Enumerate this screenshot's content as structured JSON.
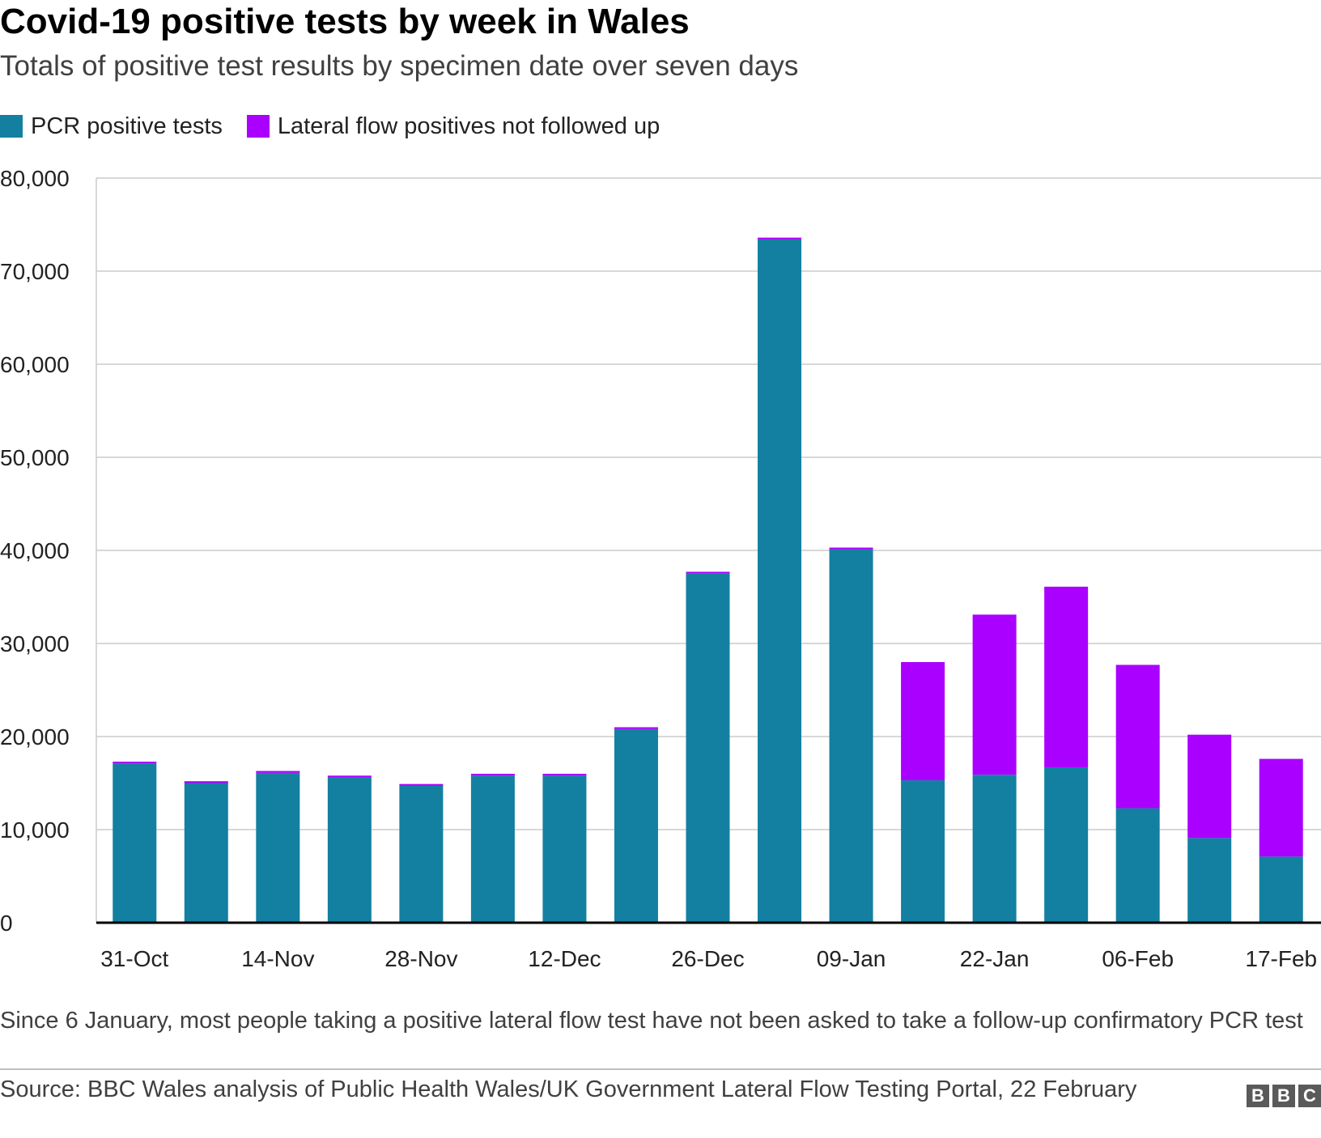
{
  "chart_data": {
    "type": "bar",
    "stacked": true,
    "title": "Covid-19 positive tests by week in Wales",
    "subtitle": "Totals of positive test results by specimen date over seven days",
    "categories": [
      "31-Oct",
      "07-Nov",
      "14-Nov",
      "21-Nov",
      "28-Nov",
      "05-Dec",
      "12-Dec",
      "19-Dec",
      "26-Dec",
      "02-Jan",
      "09-Jan",
      "16-Jan",
      "22-Jan",
      "30-Jan",
      "06-Feb",
      "12-Feb",
      "17-Feb"
    ],
    "x_tick_labels": [
      "31-Oct",
      "14-Nov",
      "28-Nov",
      "12-Dec",
      "26-Dec",
      "09-Jan",
      "22-Jan",
      "06-Feb",
      "17-Feb"
    ],
    "series": [
      {
        "name": "PCR positive tests",
        "color": "#1380a1",
        "values": [
          17100,
          15000,
          16100,
          15600,
          14700,
          15800,
          15800,
          20800,
          37500,
          73400,
          40100,
          15300,
          15900,
          16700,
          12300,
          9100,
          7100
        ]
      },
      {
        "name": "Lateral flow positives not followed up",
        "color": "#aa00ff",
        "values": [
          200,
          200,
          200,
          200,
          200,
          200,
          200,
          200,
          200,
          200,
          200,
          12700,
          17200,
          19400,
          15400,
          11100,
          10500
        ]
      }
    ],
    "xlabel": "",
    "ylabel": "",
    "ylim": [
      0,
      80000
    ],
    "y_ticks": [
      0,
      10000,
      20000,
      30000,
      40000,
      50000,
      60000,
      70000,
      80000
    ],
    "y_tick_labels": [
      "0",
      "10,000",
      "20,000",
      "30,000",
      "40,000",
      "50,000",
      "60,000",
      "70,000",
      "80,000"
    ],
    "grid": true,
    "legend_position": "top-left"
  },
  "footnote": "Since 6 January, most people taking a positive lateral flow test have not been asked to take a follow-up confirmatory PCR test",
  "source": "Source: BBC Wales analysis of Public Health Wales/UK Government Lateral Flow Testing Portal, 22 February",
  "logo": [
    "B",
    "B",
    "C"
  ]
}
